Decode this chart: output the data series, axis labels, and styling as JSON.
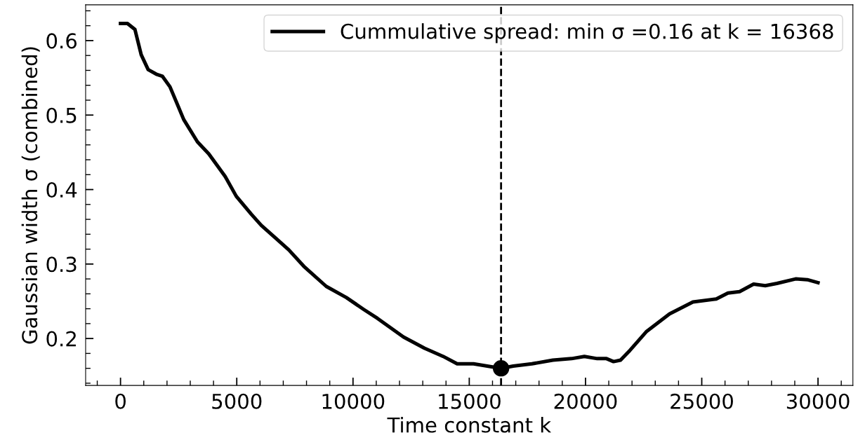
{
  "chart_data": {
    "type": "line",
    "xlabel": "Time constant k",
    "ylabel": "Gaussian width σ (combined)",
    "series": [
      {
        "name": "Cummulative spread: min σ =0.16 at k = 16368",
        "color": "#000000",
        "x": [
          0,
          298,
          620,
          890,
          1190,
          1536,
          1805,
          2127,
          2719,
          3310,
          3794,
          4494,
          4979,
          5623,
          6054,
          6699,
          7238,
          7883,
          8849,
          9711,
          10464,
          11054,
          12172,
          13075,
          13877,
          14479,
          15184,
          16368,
          16889,
          17693,
          18596,
          19400,
          19952,
          20503,
          20904,
          21205,
          21506,
          21908,
          22610,
          23615,
          24620,
          25623,
          26125,
          26627,
          27229,
          27732,
          28233,
          29036,
          29538,
          30000
        ],
        "values": [
          0.623,
          0.623,
          0.615,
          0.581,
          0.561,
          0.555,
          0.552,
          0.538,
          0.494,
          0.464,
          0.448,
          0.418,
          0.391,
          0.367,
          0.352,
          0.334,
          0.319,
          0.297,
          0.27,
          0.255,
          0.239,
          0.227,
          0.202,
          0.187,
          0.176,
          0.166,
          0.166,
          0.16,
          0.163,
          0.166,
          0.171,
          0.173,
          0.176,
          0.173,
          0.173,
          0.169,
          0.171,
          0.184,
          0.209,
          0.233,
          0.249,
          0.253,
          0.261,
          0.263,
          0.273,
          0.271,
          0.274,
          0.28,
          0.279,
          0.275
        ]
      },
      {
        "type": "scatter",
        "color": "#000000",
        "x": [
          16368
        ],
        "values": [
          0.16
        ],
        "marker": "circle"
      }
    ],
    "ref_lines": [
      {
        "axis": "x",
        "value": 16368,
        "color": "#000000",
        "line_style": "dashed"
      }
    ],
    "xlim": [
      -1500,
      31500
    ],
    "ylim": [
      0.137,
      0.648
    ],
    "xticks": [
      0,
      5000,
      10000,
      15000,
      20000,
      25000,
      30000
    ],
    "yticks": [
      0.2,
      0.3,
      0.4,
      0.5,
      0.6
    ],
    "grid": false,
    "legend": "top right",
    "marker": "none",
    "line_style": "solid"
  }
}
